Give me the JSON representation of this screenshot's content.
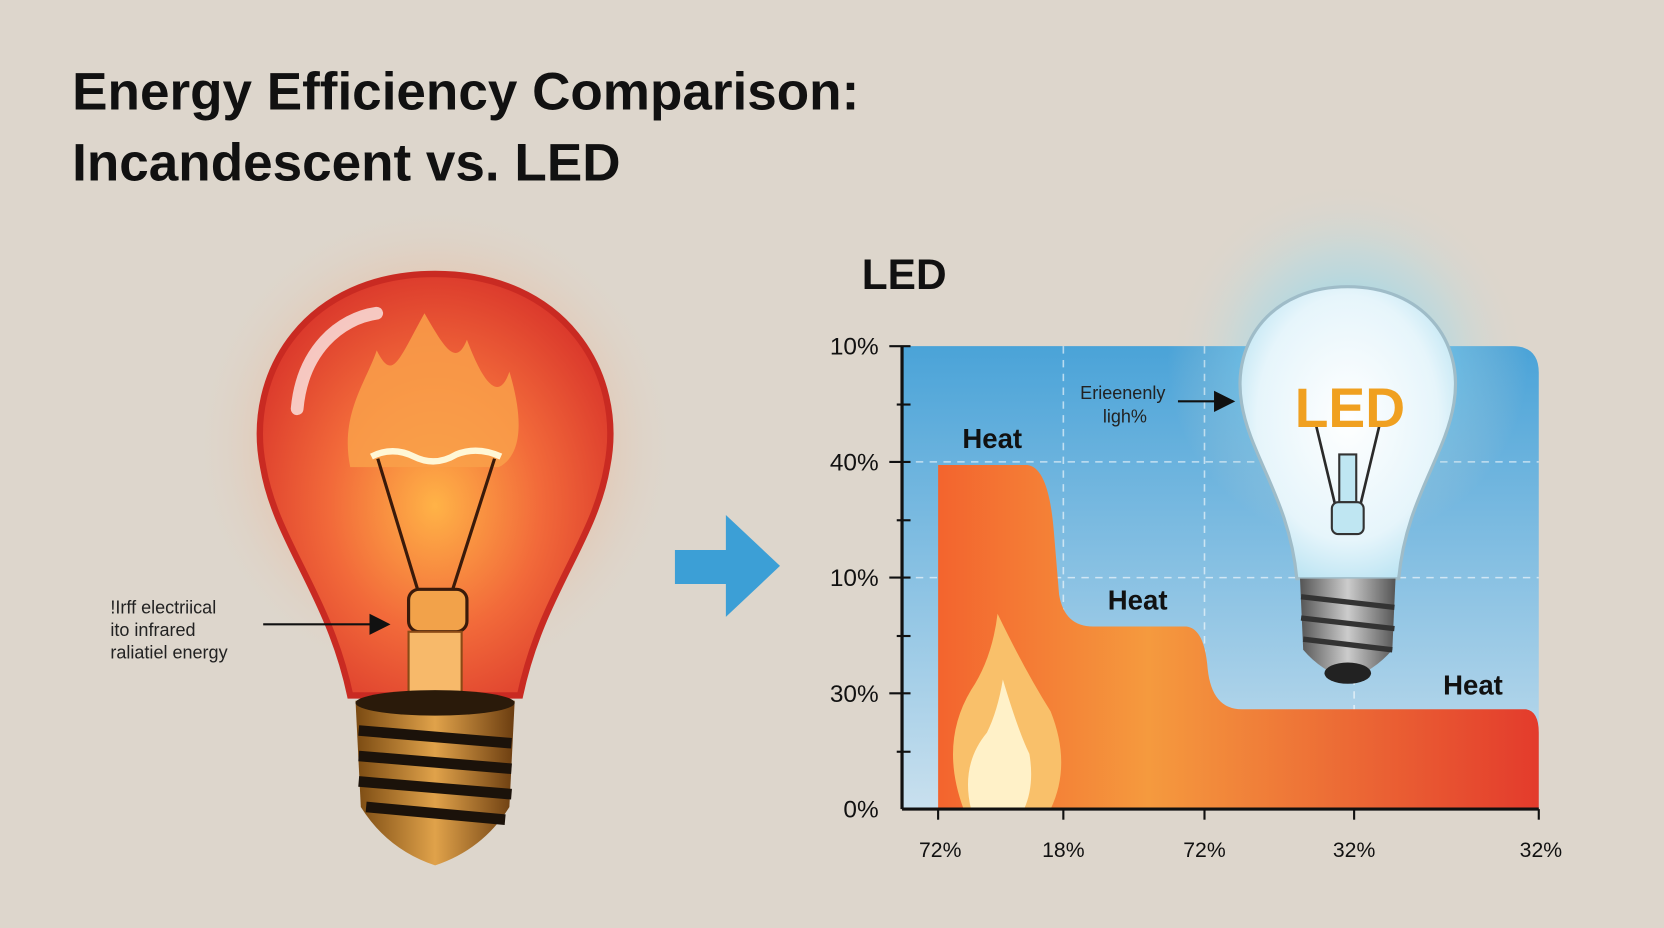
{
  "title": [
    "Energy Efficiency Comparison:",
    "Incandescent vs. LED"
  ],
  "left_annotation": [
    "!Irff electriical",
    "ito infrared",
    "raliatiel energy"
  ],
  "panel": {
    "title": "LED",
    "y_labels": [
      "10%",
      "40%",
      "10%",
      "30%",
      "0%"
    ],
    "x_labels": [
      "72%",
      "18%",
      "72%",
      "32%",
      "32%"
    ],
    "heat_labels": [
      "Heat",
      "Heat",
      "Heat"
    ],
    "bulb_label": "LED",
    "bulb_annotation": [
      "Erieenenly",
      "ligh%"
    ]
  }
}
